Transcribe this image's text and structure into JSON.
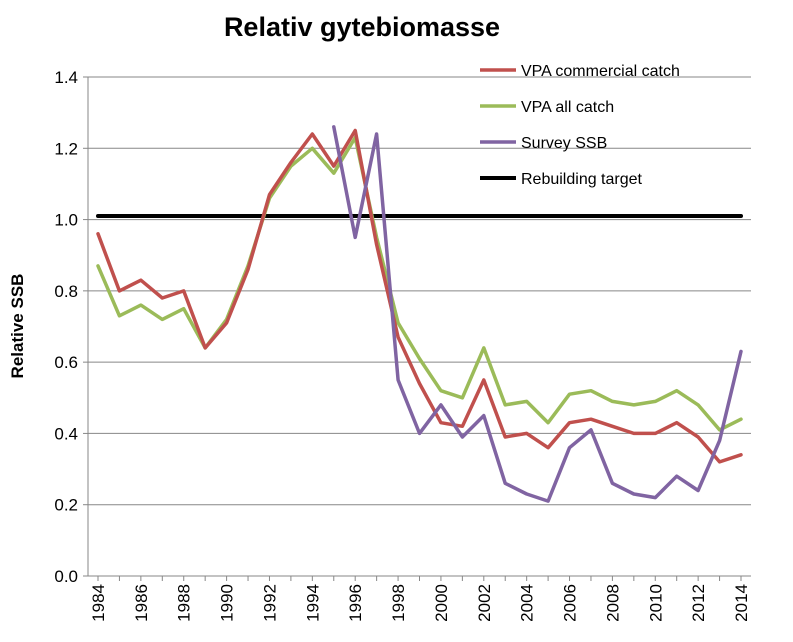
{
  "chart_data": {
    "type": "line",
    "title": "Relativ gytebiomasse",
    "xlabel": "",
    "ylabel": "Relative SSB",
    "xlim": [
      1984,
      2014
    ],
    "ylim": [
      0.0,
      1.4
    ],
    "y_ticks": [
      "0.0",
      "0.2",
      "0.4",
      "0.6",
      "0.8",
      "1.0",
      "1.2",
      "1.4"
    ],
    "x_ticks": [
      "1984",
      "1986",
      "1988",
      "1990",
      "1992",
      "1994",
      "1996",
      "1998",
      "2000",
      "2002",
      "2004",
      "2006",
      "2008",
      "2010",
      "2012",
      "2014"
    ],
    "grid": true,
    "legend_position": "top-right",
    "series": [
      {
        "name": "VPA commercial catch",
        "color": "#c0504d",
        "x": [
          1984,
          1985,
          1986,
          1987,
          1988,
          1989,
          1990,
          1991,
          1992,
          1993,
          1994,
          1995,
          1996,
          1997,
          1998,
          1999,
          2000,
          2001,
          2002,
          2003,
          2004,
          2005,
          2006,
          2007,
          2008,
          2009,
          2010,
          2011,
          2012,
          2013,
          2014
        ],
        "values": [
          0.96,
          0.8,
          0.83,
          0.78,
          0.8,
          0.64,
          0.71,
          0.86,
          1.07,
          1.16,
          1.24,
          1.15,
          1.25,
          0.93,
          0.67,
          0.54,
          0.43,
          0.42,
          0.55,
          0.39,
          0.4,
          0.36,
          0.43,
          0.44,
          0.42,
          0.4,
          0.4,
          0.43,
          0.39,
          0.32,
          0.34
        ]
      },
      {
        "name": "VPA all catch",
        "color": "#9bbb59",
        "x": [
          1984,
          1985,
          1986,
          1987,
          1988,
          1989,
          1990,
          1991,
          1992,
          1993,
          1994,
          1995,
          1996,
          1997,
          1998,
          1999,
          2000,
          2001,
          2002,
          2003,
          2004,
          2005,
          2006,
          2007,
          2008,
          2009,
          2010,
          2011,
          2012,
          2013,
          2014
        ],
        "values": [
          0.87,
          0.73,
          0.76,
          0.72,
          0.75,
          0.64,
          0.72,
          0.87,
          1.06,
          1.15,
          1.2,
          1.13,
          1.23,
          0.95,
          0.71,
          0.61,
          0.52,
          0.5,
          0.64,
          0.48,
          0.49,
          0.43,
          0.51,
          0.52,
          0.49,
          0.48,
          0.49,
          0.52,
          0.48,
          0.41,
          0.44
        ]
      },
      {
        "name": "Survey SSB",
        "color": "#8064a2",
        "x": [
          1995,
          1996,
          1997,
          1998,
          1999,
          2000,
          2001,
          2002,
          2003,
          2004,
          2005,
          2006,
          2007,
          2008,
          2009,
          2010,
          2011,
          2012,
          2013,
          2014
        ],
        "values": [
          1.26,
          0.95,
          1.24,
          0.55,
          0.4,
          0.48,
          0.39,
          0.45,
          0.26,
          0.23,
          0.21,
          0.36,
          0.41,
          0.26,
          0.23,
          0.22,
          0.28,
          0.24,
          0.38,
          0.63
        ]
      },
      {
        "name": "Rebuilding target",
        "color": "#000000",
        "x": [
          1984,
          2014
        ],
        "values": [
          1.01,
          1.01
        ]
      }
    ]
  }
}
